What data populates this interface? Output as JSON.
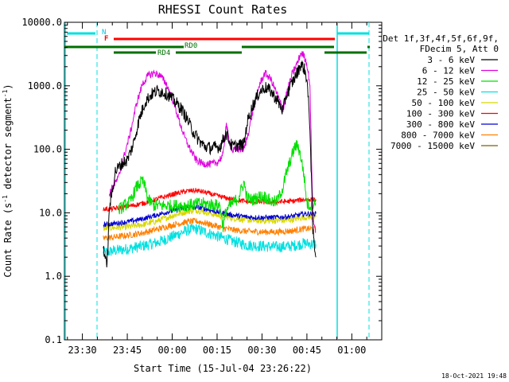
{
  "chart_data": {
    "type": "line",
    "title": "RHESSI Count Rates",
    "xlabel": "Start Time (15-Jul-04 23:26:22)",
    "ylabel": "Count Rate (s",
    "ylabel_sup1": "-1",
    "ylabel_mid": " detector segment",
    "ylabel_sup2": "-1",
    "ylabel_end": ")",
    "yscale": "log",
    "ylim": [
      0.1,
      10000
    ],
    "xlim_minutes": [
      -6,
      100
    ],
    "x_ticks": [
      {
        "label": "23:30",
        "m": 0
      },
      {
        "label": "23:45",
        "m": 15
      },
      {
        "label": "00:00",
        "m": 30
      },
      {
        "label": "00:15",
        "m": 45
      },
      {
        "label": "00:30",
        "m": 60
      },
      {
        "label": "00:45",
        "m": 75
      },
      {
        "label": "01:00",
        "m": 90
      }
    ],
    "y_ticks": [
      {
        "label": "10000.0",
        "v": 10000
      },
      {
        "label": "1000.0",
        "v": 1000
      },
      {
        "label": "100.0",
        "v": 100
      },
      {
        "label": "10.0",
        "v": 10
      },
      {
        "label": "1.0",
        "v": 1
      },
      {
        "label": "0.1",
        "v": 0.1
      }
    ],
    "legend_header": [
      "Det 1f,3f,4f,5f,6f,9f,",
      "FDecim 5, Att 0"
    ],
    "series": [
      {
        "name": "3 - 6 keV",
        "color": "#000000",
        "points": [
          [
            7,
            3
          ],
          [
            8,
            1.5
          ],
          [
            8.5,
            2.5
          ],
          [
            9,
            12
          ],
          [
            10,
            22
          ],
          [
            11,
            45
          ],
          [
            13,
            58
          ],
          [
            15,
            68
          ],
          [
            17,
            120
          ],
          [
            19,
            300
          ],
          [
            21,
            560
          ],
          [
            23,
            730
          ],
          [
            25,
            830
          ],
          [
            27,
            800
          ],
          [
            29,
            700
          ],
          [
            31,
            560
          ],
          [
            33,
            440
          ],
          [
            35,
            300
          ],
          [
            37,
            190
          ],
          [
            39,
            135
          ],
          [
            41,
            110
          ],
          [
            43,
            105
          ],
          [
            46,
            110
          ],
          [
            48,
            180
          ],
          [
            50,
            110
          ],
          [
            52,
            115
          ],
          [
            54,
            120
          ],
          [
            55,
            260
          ],
          [
            57,
            500
          ],
          [
            59,
            780
          ],
          [
            61,
            950
          ],
          [
            63,
            820
          ],
          [
            65,
            600
          ],
          [
            67,
            400
          ],
          [
            68,
            680
          ],
          [
            70,
            1100
          ],
          [
            72,
            1700
          ],
          [
            73,
            2200
          ],
          [
            74,
            1900
          ],
          [
            75,
            1300
          ],
          [
            76,
            240
          ],
          [
            77,
            5
          ],
          [
            78,
            2
          ]
        ]
      },
      {
        "name": "6 - 12 keV",
        "color": "#e000e0",
        "points": [
          [
            9,
            20
          ],
          [
            10,
            25
          ],
          [
            12,
            35
          ],
          [
            14,
            80
          ],
          [
            16,
            180
          ],
          [
            18,
            500
          ],
          [
            20,
            1050
          ],
          [
            22,
            1450
          ],
          [
            24,
            1600
          ],
          [
            26,
            1450
          ],
          [
            28,
            1080
          ],
          [
            30,
            640
          ],
          [
            32,
            320
          ],
          [
            34,
            160
          ],
          [
            36,
            100
          ],
          [
            38,
            68
          ],
          [
            40,
            60
          ],
          [
            43,
            58
          ],
          [
            45,
            62
          ],
          [
            47,
            80
          ],
          [
            48,
            250
          ],
          [
            49,
            140
          ],
          [
            50,
            95
          ],
          [
            52,
            100
          ],
          [
            54,
            100
          ],
          [
            55,
            150
          ],
          [
            57,
            400
          ],
          [
            59,
            1000
          ],
          [
            61,
            1600
          ],
          [
            63,
            1250
          ],
          [
            65,
            750
          ],
          [
            67,
            420
          ],
          [
            68,
            700
          ],
          [
            70,
            1500
          ],
          [
            72,
            2400
          ],
          [
            73,
            3300
          ],
          [
            74,
            3000
          ],
          [
            75,
            2200
          ],
          [
            76,
            1050
          ],
          [
            77,
            8
          ],
          [
            78,
            5
          ]
        ]
      },
      {
        "name": "12 - 25 keV",
        "color": "#00e000",
        "points": [
          [
            12,
            11
          ],
          [
            14,
            13
          ],
          [
            16,
            15
          ],
          [
            18,
            25
          ],
          [
            20,
            32
          ],
          [
            21,
            25
          ],
          [
            22,
            16
          ],
          [
            24,
            13
          ],
          [
            28,
            13
          ],
          [
            34,
            13
          ],
          [
            40,
            14
          ],
          [
            46,
            13
          ],
          [
            47,
            6
          ],
          [
            48,
            11
          ],
          [
            50,
            14
          ],
          [
            52,
            17
          ],
          [
            54,
            30
          ],
          [
            55,
            17
          ],
          [
            57,
            16
          ],
          [
            59,
            18
          ],
          [
            61,
            18
          ],
          [
            63,
            15
          ],
          [
            65,
            15
          ],
          [
            67,
            25
          ],
          [
            68,
            40
          ],
          [
            70,
            80
          ],
          [
            71,
            110
          ],
          [
            72,
            115
          ],
          [
            73,
            75
          ],
          [
            74,
            40
          ],
          [
            75,
            14
          ],
          [
            76,
            13
          ],
          [
            78,
            14
          ]
        ]
      },
      {
        "name": "25 - 50 keV",
        "color": "#00e0e0",
        "points": [
          [
            7,
            2.3
          ],
          [
            10,
            2.5
          ],
          [
            15,
            2.7
          ],
          [
            20,
            3.0
          ],
          [
            25,
            3.4
          ],
          [
            30,
            4.2
          ],
          [
            35,
            5.3
          ],
          [
            38,
            5.6
          ],
          [
            41,
            5.0
          ],
          [
            45,
            4.3
          ],
          [
            50,
            3.6
          ],
          [
            55,
            3.1
          ],
          [
            60,
            3.0
          ],
          [
            65,
            2.9
          ],
          [
            70,
            3.0
          ],
          [
            74,
            3.3
          ],
          [
            78,
            3.2
          ]
        ]
      },
      {
        "name": "50 - 100 keV",
        "color": "#d8d800",
        "points": [
          [
            7,
            5.6
          ],
          [
            10,
            5.8
          ],
          [
            15,
            6.0
          ],
          [
            20,
            6.5
          ],
          [
            25,
            7.4
          ],
          [
            30,
            9.0
          ],
          [
            35,
            10.5
          ],
          [
            38,
            11.0
          ],
          [
            41,
            10.3
          ],
          [
            45,
            9.2
          ],
          [
            50,
            8.3
          ],
          [
            55,
            7.7
          ],
          [
            60,
            7.5
          ],
          [
            65,
            7.5
          ],
          [
            70,
            7.8
          ],
          [
            74,
            8.5
          ],
          [
            78,
            8.6
          ]
        ]
      },
      {
        "name": "100 - 300 keV",
        "color": "#ff0000",
        "points": [
          [
            7,
            11.5
          ],
          [
            10,
            11.5
          ],
          [
            15,
            12.5
          ],
          [
            20,
            14
          ],
          [
            25,
            16.5
          ],
          [
            30,
            19.5
          ],
          [
            35,
            22
          ],
          [
            38,
            22.5
          ],
          [
            41,
            21
          ],
          [
            45,
            18.5
          ],
          [
            50,
            16.3
          ],
          [
            55,
            15
          ],
          [
            60,
            14.8
          ],
          [
            65,
            14.8
          ],
          [
            70,
            15.2
          ],
          [
            74,
            16.2
          ],
          [
            78,
            16.3
          ]
        ]
      },
      {
        "name": "300 - 800 keV",
        "color": "#0000d0",
        "points": [
          [
            7,
            6.5
          ],
          [
            10,
            6.7
          ],
          [
            15,
            7.2
          ],
          [
            20,
            8.0
          ],
          [
            25,
            9.3
          ],
          [
            30,
            10.8
          ],
          [
            35,
            12.0
          ],
          [
            38,
            12.3
          ],
          [
            41,
            11.6
          ],
          [
            45,
            10.3
          ],
          [
            50,
            9.2
          ],
          [
            55,
            8.6
          ],
          [
            60,
            8.4
          ],
          [
            65,
            8.5
          ],
          [
            70,
            8.8
          ],
          [
            74,
            9.6
          ],
          [
            78,
            9.7
          ]
        ]
      },
      {
        "name": "800 - 7000 keV",
        "color": "#ff8000",
        "points": [
          [
            7,
            4.0
          ],
          [
            10,
            4.1
          ],
          [
            15,
            4.4
          ],
          [
            20,
            4.8
          ],
          [
            25,
            5.5
          ],
          [
            30,
            6.4
          ],
          [
            35,
            7.2
          ],
          [
            38,
            7.4
          ],
          [
            41,
            6.9
          ],
          [
            45,
            6.1
          ],
          [
            50,
            5.4
          ],
          [
            55,
            5.1
          ],
          [
            60,
            5.0
          ],
          [
            65,
            5.0
          ],
          [
            70,
            5.2
          ],
          [
            74,
            5.6
          ],
          [
            78,
            5.6
          ]
        ]
      },
      {
        "name": "7000 - 15000 keV",
        "color": "#806000",
        "points": []
      }
    ],
    "attenuator_labels": [
      "N",
      "F"
    ],
    "state_labels": [
      "RD0",
      "RD4"
    ],
    "timestamp": "18-Oct-2021 19:48"
  }
}
